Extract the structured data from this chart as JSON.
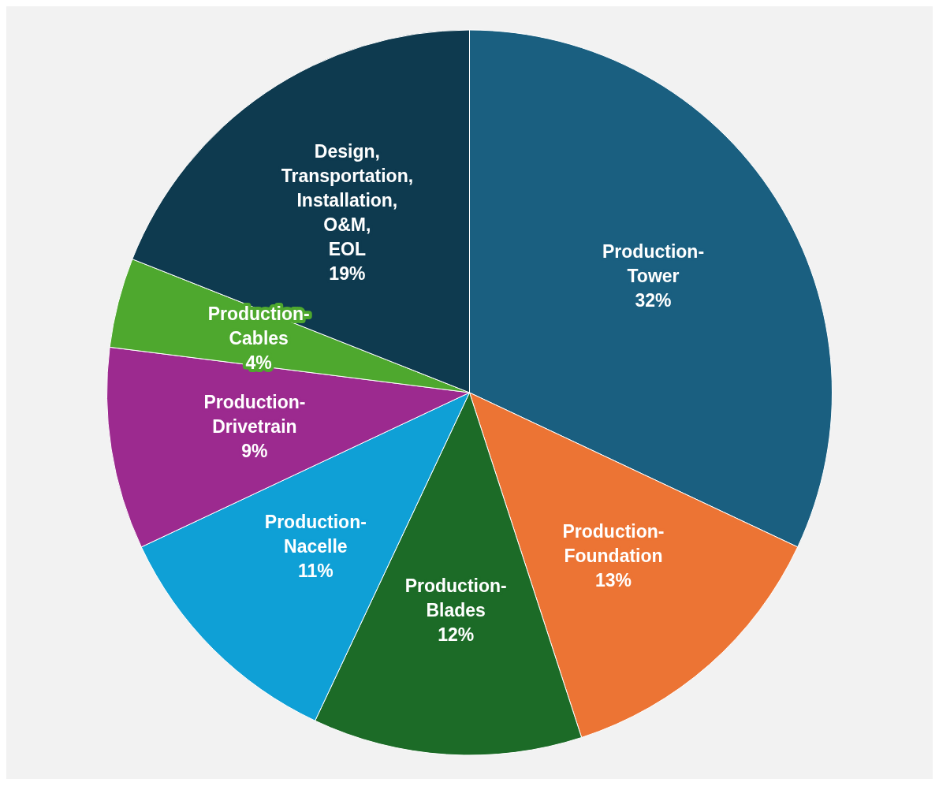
{
  "chart_data": {
    "type": "pie",
    "categories": [
      "Production-Tower",
      "Production-Foundation",
      "Production-Blades",
      "Production-Nacelle",
      "Production-Drivetrain",
      "Production-Cables",
      "Design, Transportation, Installation, O&M, EOL"
    ],
    "values": [
      32,
      13,
      12,
      11,
      9,
      4,
      19
    ],
    "colors": [
      "#1a5f80",
      "#ec7434",
      "#1c6b27",
      "#0fa0d6",
      "#9c2a8f",
      "#4ea82e",
      "#0e3a4f"
    ],
    "value_labels": [
      "32%",
      "13%",
      "12%",
      "11%",
      "9%",
      "4%",
      "19%"
    ]
  }
}
